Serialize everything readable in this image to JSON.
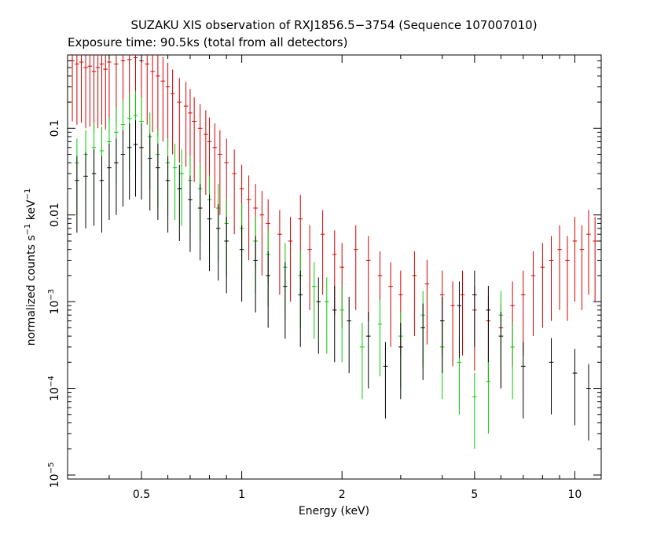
{
  "chart_data": {
    "type": "scatter",
    "title": "SUZAKU XIS observation of RXJ1856.5−3754 (Sequence 107007010)",
    "subtitle": "Exposure time: 90.5ks (total from all detectors)",
    "xlabel": "Energy (keV)",
    "ylabel": {
      "main": "normalized counts s",
      "sup1": "−1",
      "mid": " keV",
      "sup2": "−1"
    },
    "x_scale": "log",
    "y_scale": "log",
    "xlim": [
      0.3,
      12
    ],
    "ylim": [
      9e-06,
      0.7
    ],
    "x_ticks": [
      {
        "value": 0.5,
        "label": "0.5"
      },
      {
        "value": 1,
        "label": "1"
      },
      {
        "value": 2,
        "label": "2"
      },
      {
        "value": 5,
        "label": "5"
      },
      {
        "value": 10,
        "label": "10"
      }
    ],
    "y_ticks": [
      {
        "value": 0.1,
        "label": "0.1",
        "base": "",
        "exp": ""
      },
      {
        "value": 0.01,
        "label": "0.01",
        "base": "",
        "exp": ""
      },
      {
        "value": 0.001,
        "label": "",
        "base": "10",
        "exp": "−3"
      },
      {
        "value": 0.0001,
        "label": "",
        "base": "10",
        "exp": "−4"
      },
      {
        "value": 1e-05,
        "label": "",
        "base": "10",
        "exp": "−5"
      }
    ],
    "series": [
      {
        "color": "#d40000",
        "points": [
          [
            0.31,
            0.6
          ],
          [
            0.32,
            0.55
          ],
          [
            0.33,
            0.58
          ],
          [
            0.34,
            0.5
          ],
          [
            0.35,
            0.52
          ],
          [
            0.36,
            0.45
          ],
          [
            0.37,
            0.5
          ],
          [
            0.38,
            0.55
          ],
          [
            0.39,
            0.48
          ],
          [
            0.4,
            0.58
          ],
          [
            0.42,
            0.55
          ],
          [
            0.44,
            0.6
          ],
          [
            0.46,
            0.62
          ],
          [
            0.48,
            0.65
          ],
          [
            0.5,
            0.6
          ],
          [
            0.52,
            0.55
          ],
          [
            0.54,
            0.45
          ],
          [
            0.56,
            0.4
          ],
          [
            0.58,
            0.35
          ],
          [
            0.6,
            0.3
          ],
          [
            0.62,
            0.25
          ],
          [
            0.65,
            0.2
          ],
          [
            0.68,
            0.18
          ],
          [
            0.7,
            0.15
          ],
          [
            0.72,
            0.12
          ],
          [
            0.75,
            0.1
          ],
          [
            0.78,
            0.085
          ],
          [
            0.8,
            0.07
          ],
          [
            0.83,
            0.06
          ],
          [
            0.86,
            0.05
          ],
          [
            0.9,
            0.04
          ],
          [
            0.95,
            0.03
          ],
          [
            1.0,
            0.02
          ],
          [
            1.05,
            0.015
          ],
          [
            1.1,
            0.012
          ],
          [
            1.15,
            0.01
          ],
          [
            1.2,
            0.008
          ],
          [
            1.3,
            0.006
          ],
          [
            1.4,
            0.005
          ],
          [
            1.5,
            0.009
          ],
          [
            1.6,
            0.004
          ],
          [
            1.75,
            0.006
          ],
          [
            1.9,
            0.0035
          ],
          [
            2.0,
            0.0025
          ],
          [
            2.2,
            0.004
          ],
          [
            2.4,
            0.003
          ],
          [
            2.6,
            0.002
          ],
          [
            2.8,
            0.0015
          ],
          [
            3.0,
            0.0012
          ],
          [
            3.3,
            0.002
          ],
          [
            3.6,
            0.0016
          ],
          [
            4.0,
            0.0012
          ],
          [
            4.3,
            0.0009
          ],
          [
            4.6,
            0.0012
          ],
          [
            5.0,
            0.0008
          ],
          [
            5.5,
            0.0006
          ],
          [
            6.0,
            0.0005
          ],
          [
            6.5,
            0.0009
          ],
          [
            7.0,
            0.0012
          ],
          [
            7.5,
            0.002
          ],
          [
            8.0,
            0.0025
          ],
          [
            8.5,
            0.003
          ],
          [
            9.0,
            0.004
          ],
          [
            9.5,
            0.003
          ],
          [
            10.0,
            0.005
          ],
          [
            10.5,
            0.004
          ],
          [
            11.0,
            0.006
          ],
          [
            11.5,
            0.005
          ]
        ]
      },
      {
        "color": "#00cc00",
        "points": [
          [
            0.32,
            0.04
          ],
          [
            0.34,
            0.05
          ],
          [
            0.36,
            0.06
          ],
          [
            0.38,
            0.055
          ],
          [
            0.4,
            0.07
          ],
          [
            0.42,
            0.09
          ],
          [
            0.44,
            0.11
          ],
          [
            0.46,
            0.13
          ],
          [
            0.48,
            0.14
          ],
          [
            0.5,
            0.12
          ],
          [
            0.53,
            0.08
          ],
          [
            0.56,
            0.05
          ],
          [
            0.6,
            0.04
          ],
          [
            0.63,
            0.035
          ],
          [
            0.66,
            0.03
          ],
          [
            0.7,
            0.025
          ],
          [
            0.75,
            0.02
          ],
          [
            0.8,
            0.015
          ],
          [
            0.85,
            0.012
          ],
          [
            0.9,
            0.008
          ],
          [
            1.0,
            0.007
          ],
          [
            1.1,
            0.005
          ],
          [
            1.2,
            0.0035
          ],
          [
            1.35,
            0.0025
          ],
          [
            1.5,
            0.002
          ],
          [
            1.65,
            0.0015
          ],
          [
            1.8,
            0.001
          ],
          [
            2.0,
            0.0008
          ],
          [
            2.3,
            0.0003
          ],
          [
            2.6,
            0.00055
          ],
          [
            3.0,
            0.0004
          ],
          [
            3.5,
            0.0007
          ],
          [
            4.0,
            0.0003
          ],
          [
            4.5,
            0.0002
          ],
          [
            5.0,
            8e-05
          ],
          [
            5.5,
            0.00012
          ],
          [
            6.0,
            0.0007
          ],
          [
            6.5,
            0.0003
          ]
        ]
      },
      {
        "color": "#000000",
        "points": [
          [
            0.32,
            0.025
          ],
          [
            0.34,
            0.028
          ],
          [
            0.36,
            0.03
          ],
          [
            0.38,
            0.025
          ],
          [
            0.4,
            0.035
          ],
          [
            0.42,
            0.04
          ],
          [
            0.44,
            0.05
          ],
          [
            0.46,
            0.06
          ],
          [
            0.48,
            0.065
          ],
          [
            0.5,
            0.06
          ],
          [
            0.53,
            0.045
          ],
          [
            0.56,
            0.035
          ],
          [
            0.6,
            0.025
          ],
          [
            0.65,
            0.02
          ],
          [
            0.7,
            0.015
          ],
          [
            0.75,
            0.012
          ],
          [
            0.8,
            0.009
          ],
          [
            0.85,
            0.007
          ],
          [
            0.9,
            0.005
          ],
          [
            1.0,
            0.004
          ],
          [
            1.1,
            0.003
          ],
          [
            1.2,
            0.002
          ],
          [
            1.35,
            0.0015
          ],
          [
            1.5,
            0.0012
          ],
          [
            1.7,
            0.001
          ],
          [
            1.9,
            0.0008
          ],
          [
            2.1,
            0.0006
          ],
          [
            2.4,
            0.0004
          ],
          [
            2.7,
            0.00018
          ],
          [
            3.0,
            0.0003
          ],
          [
            3.5,
            0.0005
          ],
          [
            4.0,
            0.0006
          ],
          [
            4.5,
            0.0009
          ],
          [
            5.0,
            0.0012
          ],
          [
            5.5,
            0.0008
          ],
          [
            6.0,
            0.0004
          ],
          [
            7.0,
            0.00018
          ],
          [
            8.5,
            0.0002
          ],
          [
            10.0,
            0.00015
          ],
          [
            11.0,
            0.0001
          ]
        ]
      }
    ]
  }
}
